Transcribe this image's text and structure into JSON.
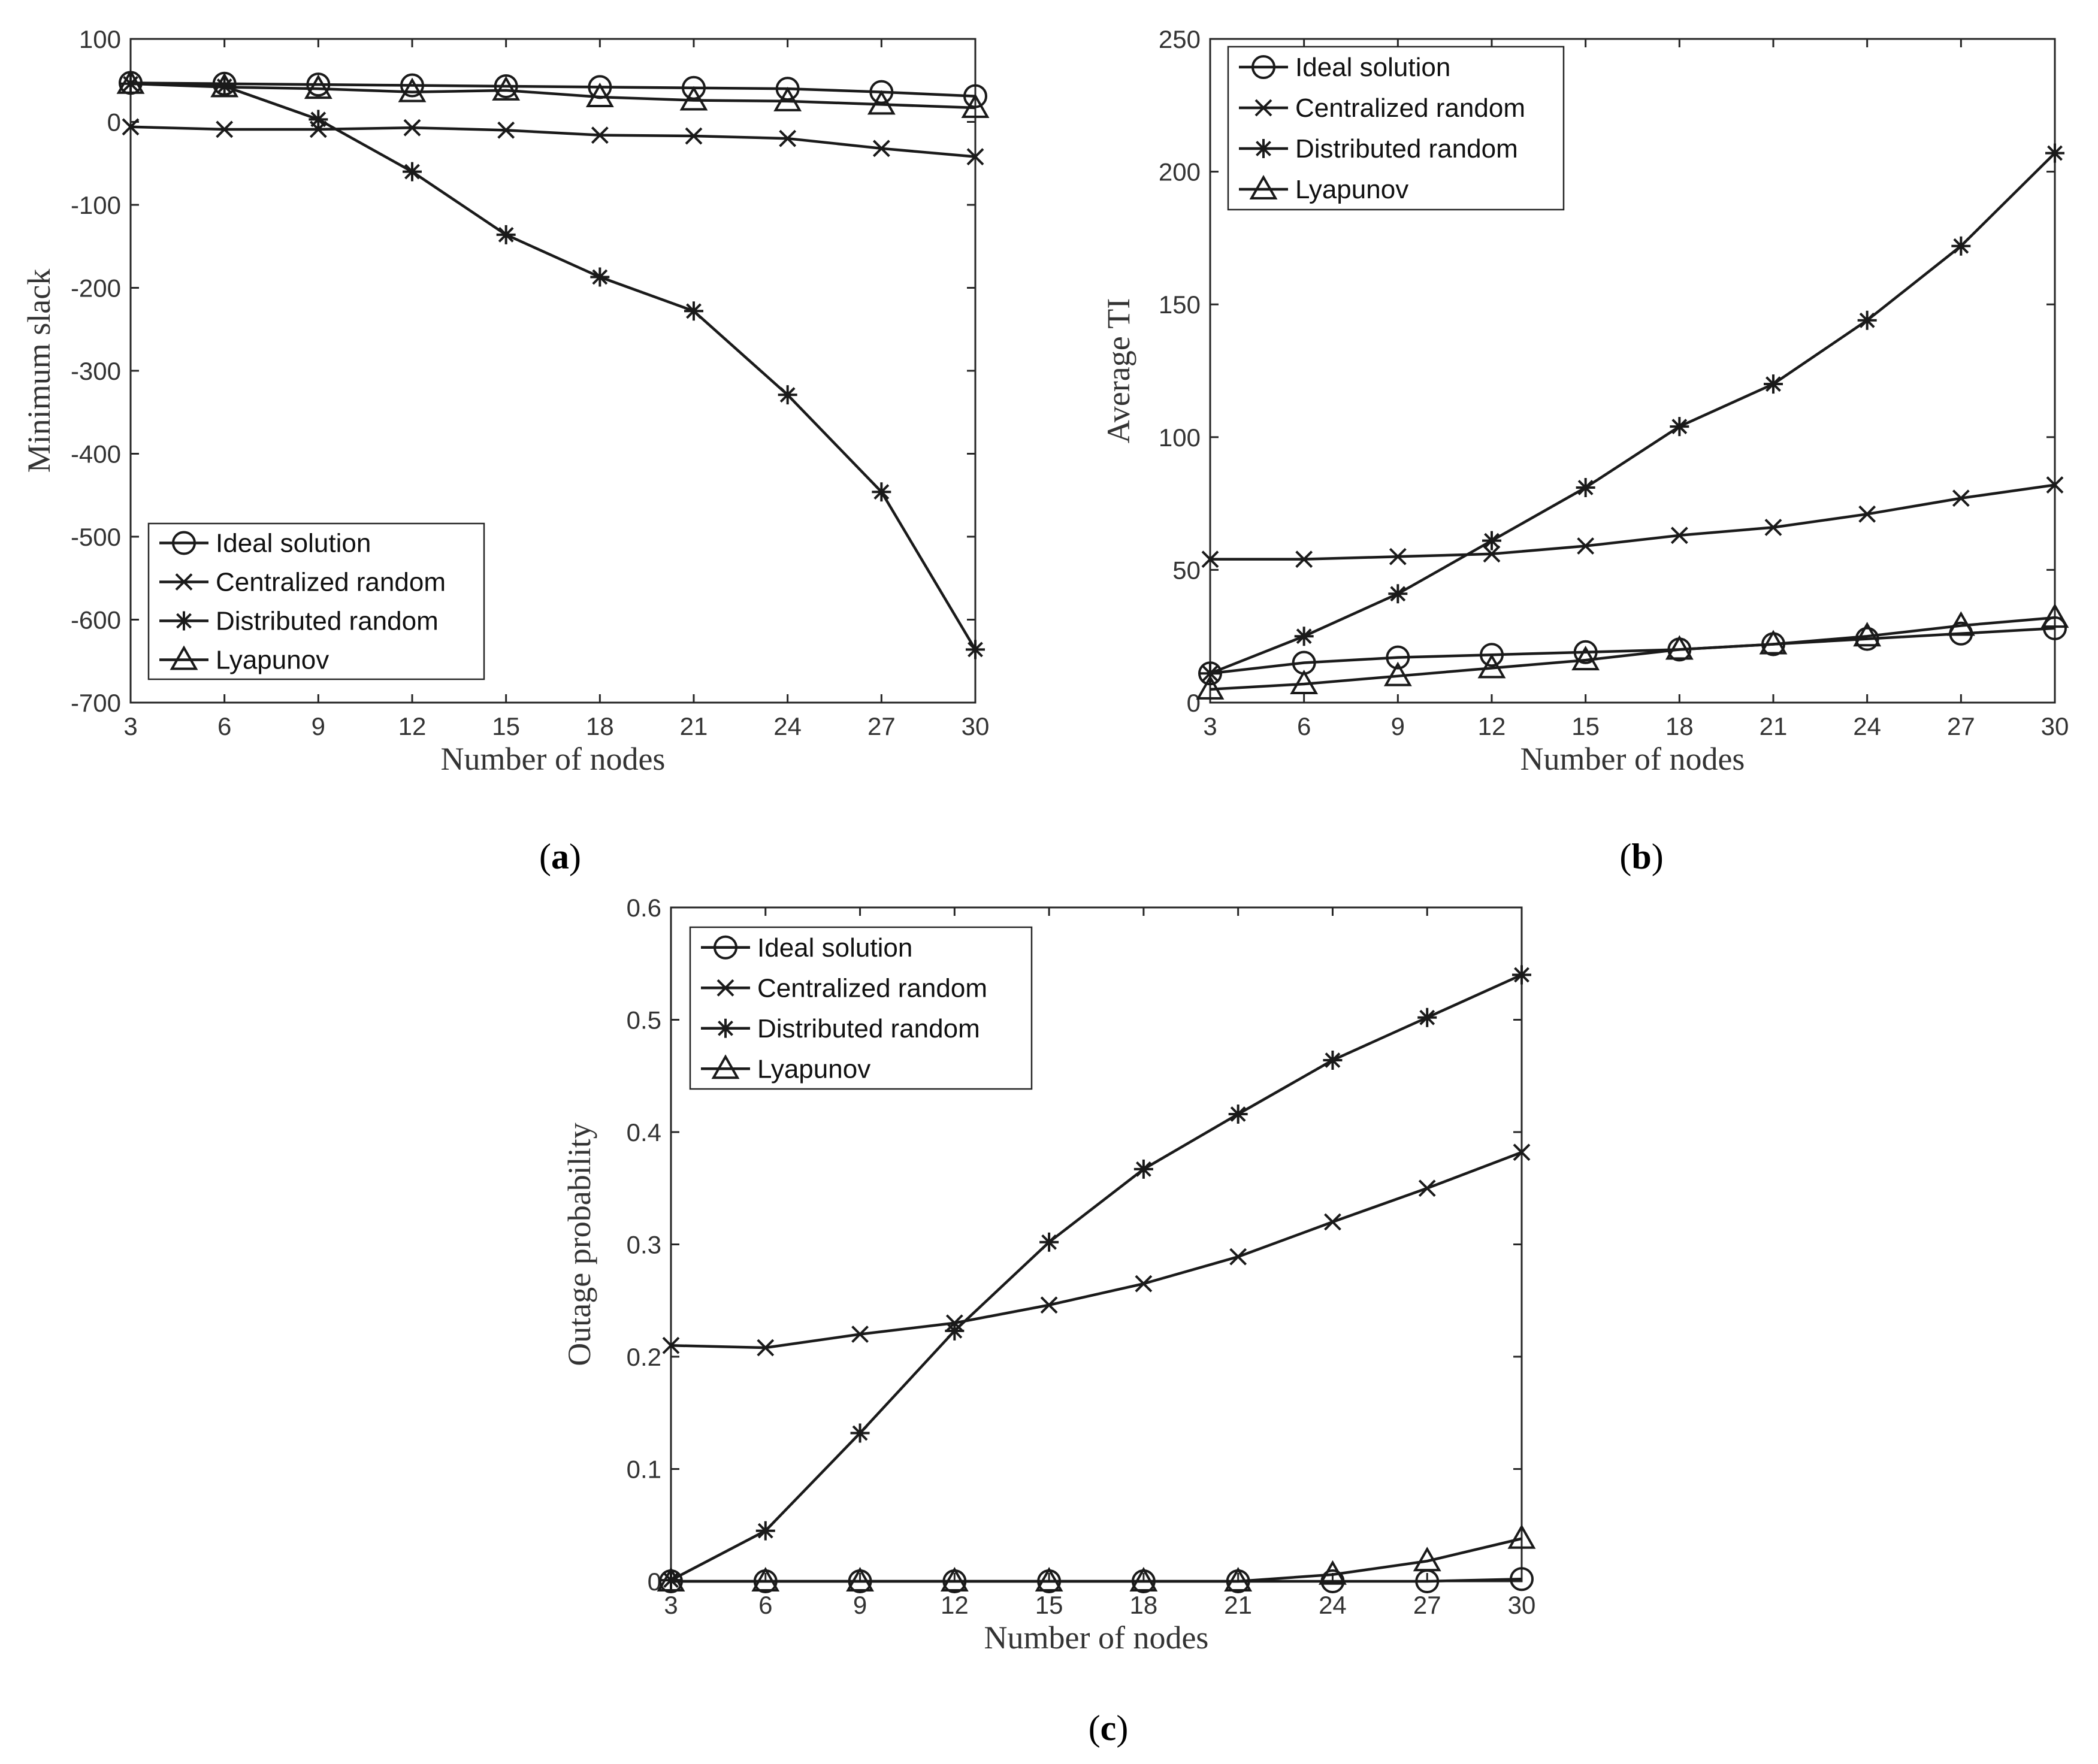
{
  "colors": {
    "line": "#1a1a1a",
    "axis": "#262626",
    "text": "#333333",
    "background": "#ffffff"
  },
  "chart_data": [
    {
      "id": "a",
      "type": "line",
      "panel_label": {
        "open": "(",
        "letter": "a",
        "close": ")"
      },
      "xlabel": "Number of nodes",
      "ylabel": "Minimum slack",
      "x": [
        3,
        6,
        9,
        12,
        15,
        18,
        21,
        24,
        27,
        30
      ],
      "xlim": [
        3,
        30
      ],
      "ylim": [
        -700,
        100
      ],
      "xticks": [
        3,
        6,
        9,
        12,
        15,
        18,
        21,
        24,
        27,
        30
      ],
      "yticks": [
        -700,
        -600,
        -500,
        -400,
        -300,
        -200,
        -100,
        0,
        100
      ],
      "legend_position": "bottom-left",
      "series": [
        {
          "name": "Ideal solution",
          "marker": "circle",
          "values": [
            47,
            46,
            45,
            44,
            43,
            42,
            41,
            40,
            36,
            31
          ]
        },
        {
          "name": "Centralized random",
          "marker": "x",
          "values": [
            -6,
            -9,
            -9,
            -7,
            -10,
            -16,
            -17,
            -20,
            -32,
            -42
          ]
        },
        {
          "name": "Distributed random",
          "marker": "star",
          "values": [
            46,
            43,
            3,
            -60,
            -136,
            -187,
            -228,
            -329,
            -446,
            -636
          ]
        },
        {
          "name": "Lyapunov",
          "marker": "triangle",
          "values": [
            46,
            42,
            40,
            36,
            38,
            30,
            26,
            25,
            21,
            17
          ]
        }
      ]
    },
    {
      "id": "b",
      "type": "line",
      "panel_label": {
        "open": "(",
        "letter": "b",
        "close": ")"
      },
      "xlabel": "Number of nodes",
      "ylabel": "Average TI",
      "x": [
        3,
        6,
        9,
        12,
        15,
        18,
        21,
        24,
        27,
        30
      ],
      "xlim": [
        3,
        30
      ],
      "ylim": [
        0,
        250
      ],
      "xticks": [
        3,
        6,
        9,
        12,
        15,
        18,
        21,
        24,
        27,
        30
      ],
      "yticks": [
        0,
        50,
        100,
        150,
        200,
        250
      ],
      "legend_position": "top-left",
      "series": [
        {
          "name": "Ideal solution",
          "marker": "circle",
          "values": [
            11,
            15,
            17,
            18,
            19,
            20,
            22,
            24,
            26,
            28
          ]
        },
        {
          "name": "Centralized random",
          "marker": "x",
          "values": [
            54,
            54,
            55,
            56,
            59,
            63,
            66,
            71,
            77,
            82
          ]
        },
        {
          "name": "Distributed random",
          "marker": "star",
          "values": [
            11,
            25,
            41,
            61,
            81,
            104,
            120,
            144,
            172,
            207
          ]
        },
        {
          "name": "Lyapunov",
          "marker": "triangle",
          "values": [
            5,
            7,
            10,
            13,
            16,
            20,
            22,
            25,
            29,
            32
          ]
        }
      ]
    },
    {
      "id": "c",
      "type": "line",
      "panel_label": {
        "open": "(",
        "letter": "c",
        "close": ")"
      },
      "xlabel": "Number of nodes",
      "ylabel": "Outage probability",
      "x": [
        3,
        6,
        9,
        12,
        15,
        18,
        21,
        24,
        27,
        30
      ],
      "xlim": [
        3,
        30
      ],
      "ylim": [
        0,
        0.6
      ],
      "xticks": [
        3,
        6,
        9,
        12,
        15,
        18,
        21,
        24,
        27,
        30
      ],
      "yticks": [
        0,
        0.1,
        0.2,
        0.3,
        0.4,
        0.5,
        0.6
      ],
      "legend_position": "top-left",
      "series": [
        {
          "name": "Ideal solution",
          "marker": "circle",
          "values": [
            0,
            0,
            0,
            0,
            0,
            0,
            0,
            0,
            0,
            0.002
          ]
        },
        {
          "name": "Centralized random",
          "marker": "x",
          "values": [
            0.21,
            0.208,
            0.22,
            0.23,
            0.246,
            0.265,
            0.289,
            0.32,
            0.35,
            0.382
          ]
        },
        {
          "name": "Distributed random",
          "marker": "star",
          "values": [
            0.001,
            0.045,
            0.132,
            0.223,
            0.302,
            0.367,
            0.416,
            0.464,
            0.502,
            0.54
          ]
        },
        {
          "name": "Lyapunov",
          "marker": "triangle",
          "values": [
            0,
            0,
            0,
            0,
            0,
            0,
            0,
            0.006,
            0.018,
            0.038
          ]
        }
      ]
    }
  ]
}
